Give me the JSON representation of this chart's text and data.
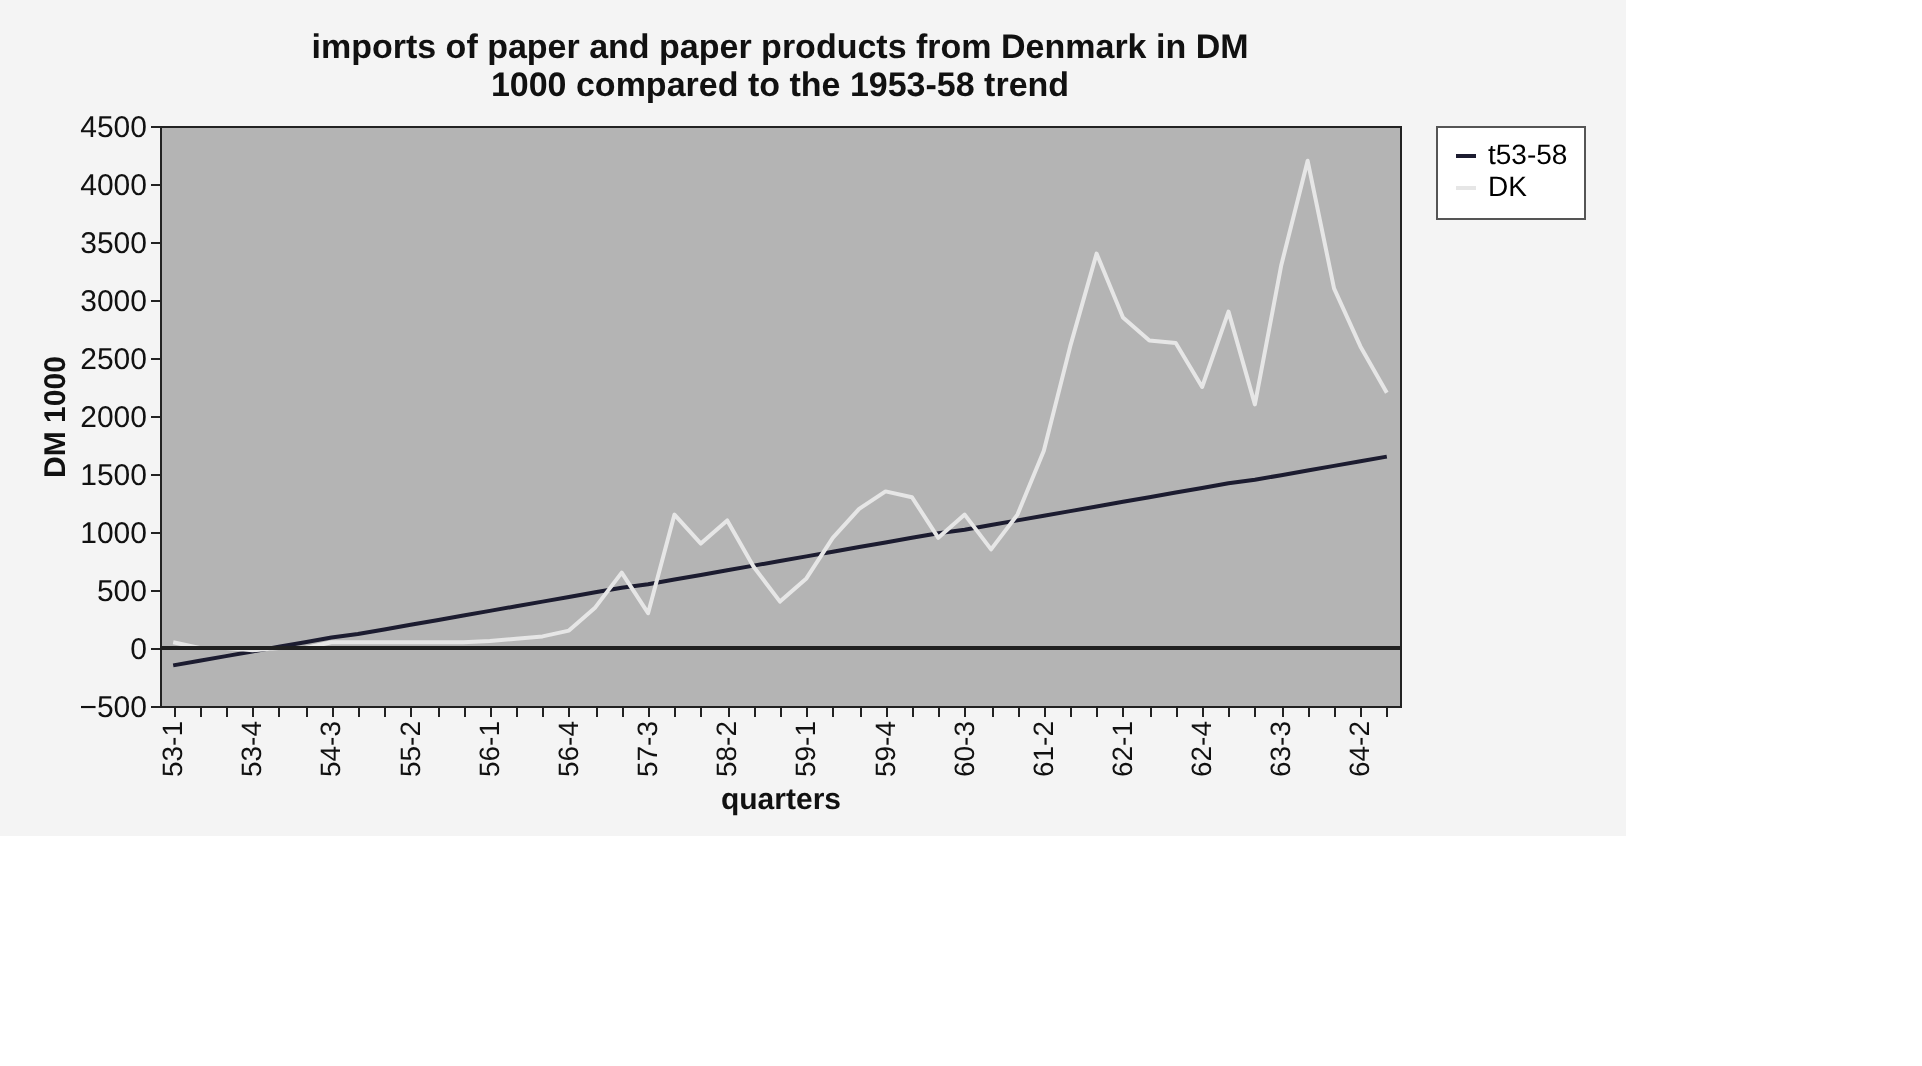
{
  "chart_data": {
    "type": "line",
    "title": [
      "imports of paper and paper products from Denmark in DM",
      "1000 compared to the 1953-58 trend"
    ],
    "xlabel": "quarters",
    "ylabel": "DM 1000",
    "categories": [
      "53-1",
      null,
      null,
      "53-4",
      null,
      null,
      "54-3",
      null,
      null,
      "55-2",
      null,
      null,
      "56-1",
      null,
      null,
      "56-4",
      null,
      null,
      "57-3",
      null,
      null,
      "58-2",
      null,
      null,
      "59-1",
      null,
      null,
      "59-4",
      null,
      null,
      "60-3",
      null,
      null,
      "61-2",
      null,
      null,
      "62-1",
      null,
      null,
      "62-4",
      null,
      null,
      "63-3",
      null,
      null,
      "64-2",
      null
    ],
    "series": [
      {
        "name": "t53-58",
        "color": "#1c1c30",
        "values": [
          -150,
          -110,
          -70,
          -30,
          10,
          50,
          90,
          120,
          160,
          200,
          240,
          280,
          320,
          360,
          400,
          440,
          480,
          520,
          550,
          590,
          630,
          670,
          710,
          750,
          790,
          830,
          870,
          910,
          950,
          990,
          1020,
          1060,
          1100,
          1140,
          1180,
          1220,
          1260,
          1300,
          1340,
          1380,
          1420,
          1450,
          1490,
          1530,
          1570,
          1610,
          1650
        ]
      },
      {
        "name": "DK",
        "color": "#e6e6e6",
        "values": [
          50,
          0,
          0,
          -20,
          0,
          0,
          50,
          50,
          50,
          50,
          50,
          50,
          60,
          80,
          100,
          150,
          350,
          650,
          300,
          1150,
          900,
          1100,
          700,
          400,
          600,
          950,
          1200,
          1350,
          1300,
          950,
          1150,
          850,
          1150,
          1700,
          2600,
          3400,
          2850,
          2650,
          2630,
          2250,
          2900,
          2100,
          3300,
          4200,
          3100,
          2600,
          2200
        ]
      }
    ],
    "ylim": [
      -500,
      4500
    ],
    "yticks": [
      -500,
      0,
      500,
      1000,
      1500,
      2000,
      2500,
      3000,
      3500,
      4000,
      4500
    ],
    "ref_lines": [
      {
        "axis": "y",
        "value": 0,
        "color": "#202020"
      }
    ],
    "grid": false,
    "legend": "right",
    "marker": "none",
    "line_style": "solid"
  }
}
